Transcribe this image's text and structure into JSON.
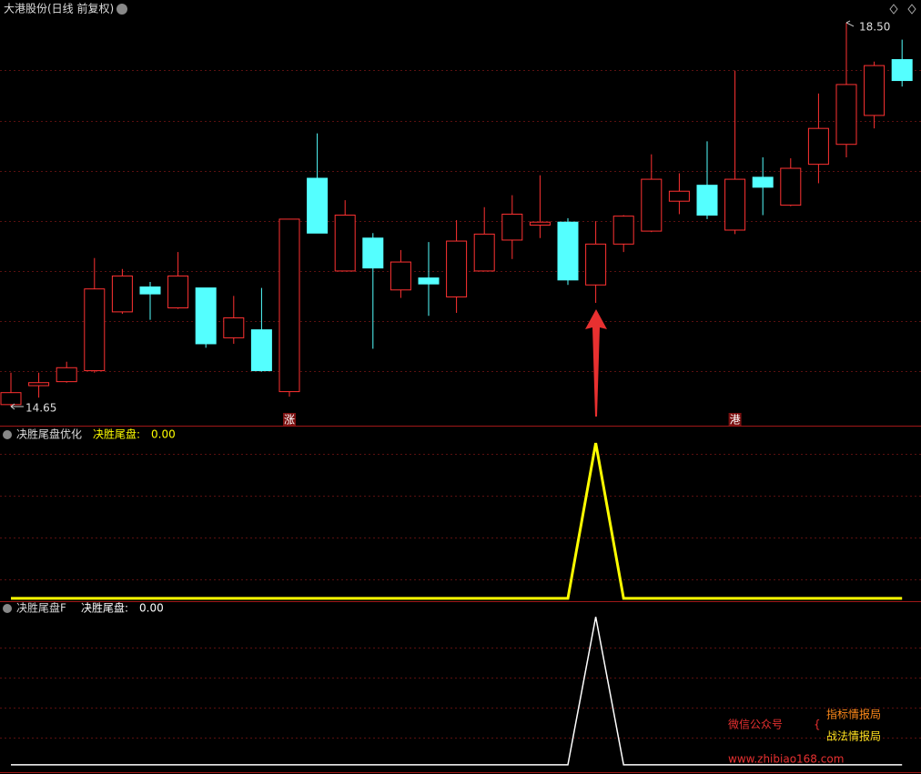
{
  "chart_data": [
    {
      "type": "candlestick",
      "title": "大港股份(日线 前复权)",
      "categories": [
        null,
        null,
        null,
        null,
        null,
        null,
        null,
        null,
        null,
        null,
        null,
        null,
        null,
        null,
        null,
        null,
        null,
        null,
        null,
        null,
        null,
        null,
        null,
        null,
        null,
        null,
        null,
        null,
        null,
        null,
        null,
        null,
        null
      ],
      "open": [
        14.67,
        14.86,
        14.9,
        15.01,
        15.6,
        15.85,
        15.64,
        15.84,
        15.34,
        15.42,
        14.8,
        16.94,
        16.01,
        16.34,
        15.82,
        15.94,
        15.75,
        16.01,
        16.32,
        16.47,
        16.5,
        15.87,
        16.28,
        16.41,
        16.71,
        16.87,
        16.42,
        16.95,
        16.67,
        17.08,
        17.28,
        17.57,
        18.13
      ],
      "high": [
        14.99,
        14.99,
        15.1,
        16.14,
        16.03,
        15.9,
        16.2,
        15.84,
        15.76,
        15.84,
        16.53,
        17.39,
        16.72,
        16.39,
        16.22,
        16.3,
        16.52,
        16.65,
        16.77,
        16.97,
        16.54,
        16.51,
        16.57,
        17.18,
        16.99,
        17.31,
        18.02,
        17.15,
        17.14,
        17.79,
        18.5,
        18.11,
        18.33
      ],
      "low": [
        14.65,
        14.74,
        14.89,
        14.99,
        15.58,
        15.52,
        15.63,
        15.24,
        15.28,
        15.0,
        14.75,
        16.39,
        16.01,
        15.23,
        15.74,
        15.56,
        15.59,
        16.01,
        16.13,
        16.34,
        15.87,
        15.69,
        16.2,
        16.4,
        16.58,
        16.53,
        16.38,
        16.57,
        16.66,
        16.89,
        17.15,
        17.44,
        17.86
      ],
      "close": [
        14.79,
        14.89,
        15.04,
        15.83,
        15.96,
        15.78,
        15.96,
        15.28,
        15.54,
        15.01,
        16.53,
        16.39,
        16.57,
        16.04,
        16.1,
        15.88,
        16.31,
        16.38,
        16.58,
        16.5,
        15.92,
        16.28,
        16.56,
        16.93,
        16.81,
        16.57,
        16.93,
        16.85,
        17.04,
        17.44,
        17.88,
        18.07,
        17.92
      ],
      "up_color": "#ff3232",
      "down_color": "#54ffff",
      "ylim": [
        14.55,
        18.6
      ],
      "max_marker": {
        "value": 18.5,
        "label": "18.50"
      },
      "min_marker": {
        "value": 14.65,
        "label": "14.65"
      },
      "markers": [
        null,
        null,
        null,
        null,
        null,
        null,
        null,
        null,
        null,
        null,
        "涨",
        null,
        null,
        null,
        null,
        null,
        null,
        null,
        null,
        null,
        null,
        null,
        null,
        null,
        null,
        null,
        "港",
        null,
        null,
        null,
        null,
        null,
        null
      ]
    },
    {
      "type": "line",
      "title": "决胜尾盘优化",
      "series": [
        {
          "name": "决胜尾盘:",
          "color": "#ffff00",
          "width": 3,
          "values": [
            0,
            0,
            0,
            0,
            0,
            0,
            0,
            0,
            0,
            0,
            0,
            0,
            0,
            0,
            0,
            0,
            0,
            0,
            0,
            0,
            0,
            1,
            0,
            0,
            0,
            0,
            0,
            0,
            0,
            0,
            0,
            0,
            0
          ],
          "last_value": {
            "value": 0,
            "label": "0.00"
          }
        }
      ],
      "ylim": [
        -0.03,
        1.1
      ]
    },
    {
      "type": "line",
      "title": "决胜尾盘F",
      "series": [
        {
          "name": "决胜尾盘:",
          "color": "#ffffff",
          "width": 1.5,
          "values": [
            0,
            0,
            0,
            0,
            0,
            0,
            0,
            0,
            0,
            0,
            0,
            0,
            0,
            0,
            0,
            0,
            0,
            0,
            0,
            0,
            0,
            1,
            0,
            0,
            0,
            0,
            0,
            0,
            0,
            0,
            0,
            0,
            0
          ],
          "last_value": {
            "value": 0,
            "label": "0.00"
          }
        }
      ],
      "ylim": [
        -0.05,
        1.1
      ]
    }
  ],
  "watermark": {
    "account_label": "微信公众号",
    "name1": "指标情报局",
    "name2": "战法情报局",
    "url": "www.zhibiao168.com"
  }
}
